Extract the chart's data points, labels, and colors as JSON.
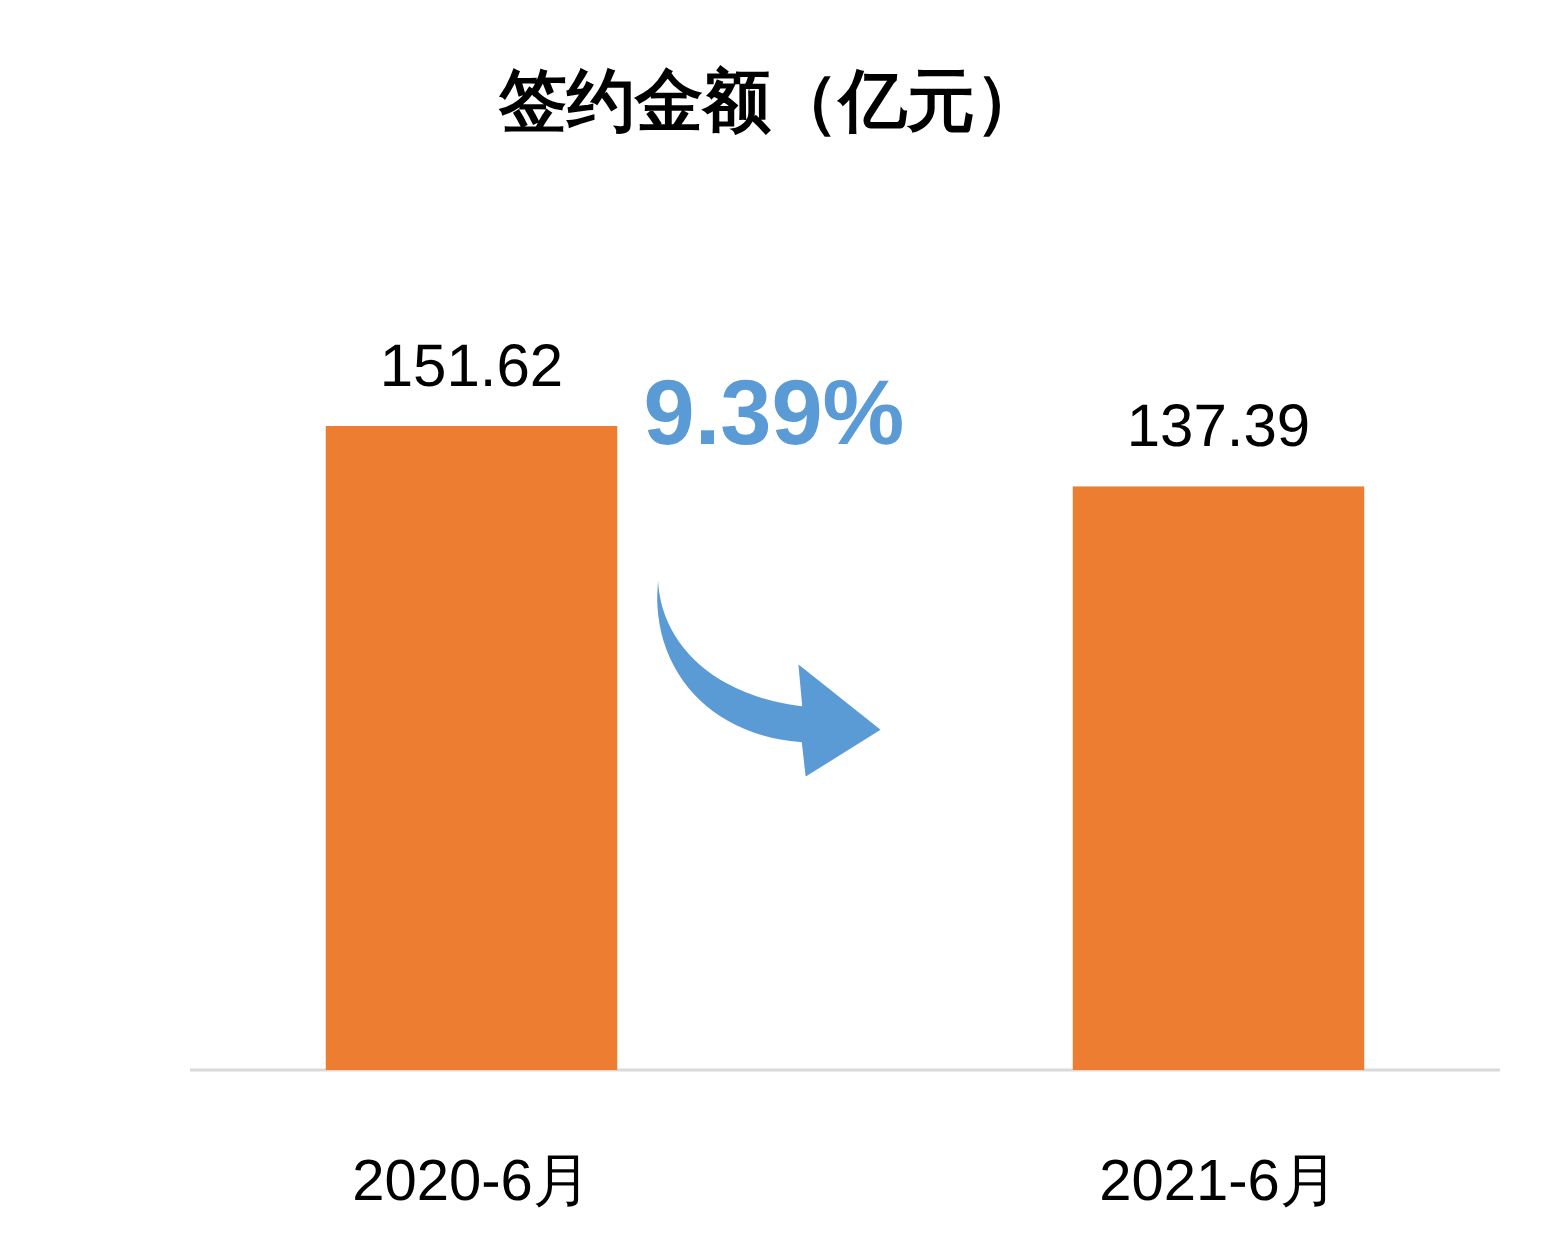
{
  "chart_data": {
    "type": "bar",
    "title": "签约金额（亿元）",
    "categories": [
      "2020-6月",
      "2021-6月"
    ],
    "values": [
      151.62,
      137.39
    ],
    "color": "#ed7d31",
    "data_labels": true,
    "annotations": [
      "9.39%"
    ]
  }
}
